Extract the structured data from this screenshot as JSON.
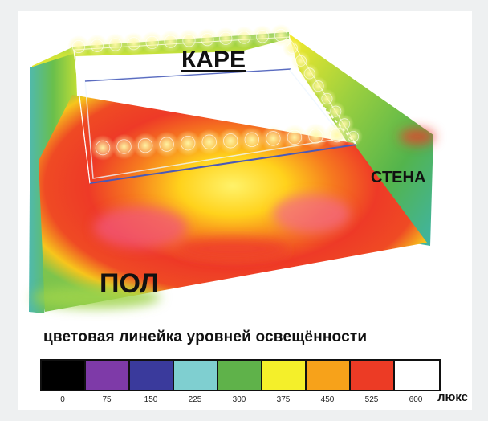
{
  "labels": {
    "ceiling": "КАРЕ",
    "wall": "СТЕНА",
    "floor": "ПОЛ"
  },
  "legend": {
    "title": "цветовая  линейка уровней освещённости",
    "unit": "люкс",
    "ticks": [
      "0",
      "75",
      "150",
      "225",
      "300",
      "375",
      "450",
      "525",
      "600"
    ],
    "colors": [
      "#000000",
      "#7e3aa8",
      "#3a3a9c",
      "#7fcfd0",
      "#5fb24a",
      "#f4ef2a",
      "#f7a21a",
      "#ec3b25",
      "#ffffff"
    ]
  }
}
